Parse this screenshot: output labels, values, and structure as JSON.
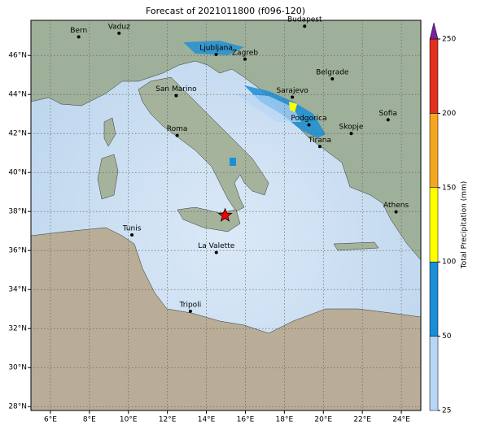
{
  "chart_data": {
    "type": "map",
    "title": "Forecast of 2021011800 (f096-120)",
    "xlim": [
      5,
      25
    ],
    "ylim": [
      27.8,
      47.8
    ],
    "xticks": [
      {
        "value": 6,
        "label": "6°E"
      },
      {
        "value": 8,
        "label": "8°E"
      },
      {
        "value": 10,
        "label": "10°E"
      },
      {
        "value": 12,
        "label": "12°E"
      },
      {
        "value": 14,
        "label": "14°E"
      },
      {
        "value": 16,
        "label": "16°E"
      },
      {
        "value": 18,
        "label": "18°E"
      },
      {
        "value": 20,
        "label": "20°E"
      },
      {
        "value": 22,
        "label": "22°E"
      },
      {
        "value": 24,
        "label": "24°E"
      }
    ],
    "yticks": [
      {
        "value": 28,
        "label": "28°N"
      },
      {
        "value": 30,
        "label": "30°N"
      },
      {
        "value": 32,
        "label": "32°N"
      },
      {
        "value": 34,
        "label": "34°N"
      },
      {
        "value": 36,
        "label": "36°N"
      },
      {
        "value": 38,
        "label": "38°N"
      },
      {
        "value": 40,
        "label": "40°N"
      },
      {
        "value": 42,
        "label": "42°N"
      },
      {
        "value": 44,
        "label": "44°N"
      },
      {
        "value": 46,
        "label": "46°N"
      }
    ],
    "grid": true,
    "cities": [
      {
        "name": "Bern",
        "lon": 7.45,
        "lat": 46.95
      },
      {
        "name": "Vaduz",
        "lon": 9.52,
        "lat": 47.14
      },
      {
        "name": "Budapest",
        "lon": 19.04,
        "lat": 47.5
      },
      {
        "name": "Ljubljana",
        "lon": 14.5,
        "lat": 46.05
      },
      {
        "name": "Zagreb",
        "lon": 15.98,
        "lat": 45.81
      },
      {
        "name": "Belgrade",
        "lon": 20.46,
        "lat": 44.8
      },
      {
        "name": "San Marino",
        "lon": 12.45,
        "lat": 43.94
      },
      {
        "name": "Sarajevo",
        "lon": 18.41,
        "lat": 43.86
      },
      {
        "name": "Sofia",
        "lon": 23.32,
        "lat": 42.7
      },
      {
        "name": "Podgorica",
        "lon": 19.26,
        "lat": 42.44
      },
      {
        "name": "Skopje",
        "lon": 21.43,
        "lat": 42.0
      },
      {
        "name": "Roma",
        "lon": 12.5,
        "lat": 41.9
      },
      {
        "name": "Tirana",
        "lon": 19.82,
        "lat": 41.33
      },
      {
        "name": "Athens",
        "lon": 23.73,
        "lat": 37.98
      },
      {
        "name": "Tunis",
        "lon": 10.18,
        "lat": 36.8
      },
      {
        "name": "La Valette",
        "lon": 14.51,
        "lat": 35.9
      },
      {
        "name": "Tripoli",
        "lon": 13.18,
        "lat": 32.89
      }
    ],
    "marker": {
      "lon": 14.96,
      "lat": 37.8,
      "color": "#ff0000"
    },
    "colorbar": {
      "label": "Total Precipitation (mm)",
      "ticks": [
        25,
        50,
        100,
        150,
        200,
        250
      ],
      "colors": [
        "#b7d6f7",
        "#1b8fd6",
        "#ffff00",
        "#f5a623",
        "#e0301e"
      ],
      "extend_color": "#7b1fa2"
    }
  }
}
